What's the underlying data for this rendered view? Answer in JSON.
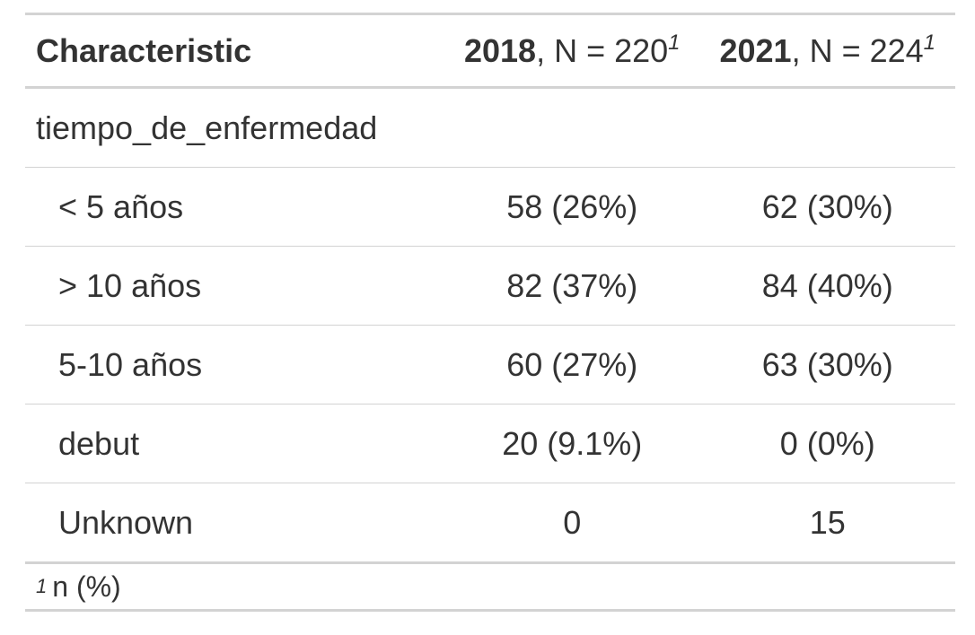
{
  "table": {
    "header": {
      "characteristic": "Characteristic",
      "col1_year": "2018",
      "col1_n": ", N = 220",
      "col2_year": "2021",
      "col2_n": ", N = 224",
      "footnote_marker": "1"
    },
    "variable_label": "tiempo_de_enfermedad",
    "rows": [
      {
        "label": "< 5 años",
        "v2018": "58 (26%)",
        "v2021": "62 (30%)"
      },
      {
        "label": "> 10 años",
        "v2018": "82 (37%)",
        "v2021": "84 (40%)"
      },
      {
        "label": "5-10 años",
        "v2018": "60 (27%)",
        "v2021": "63 (30%)"
      },
      {
        "label": "debut",
        "v2018": "20 (9.1%)",
        "v2021": "0 (0%)"
      },
      {
        "label": "Unknown",
        "v2018": "0",
        "v2021": "15"
      }
    ],
    "footnote": {
      "marker": "1",
      "text": "n (%)"
    }
  }
}
